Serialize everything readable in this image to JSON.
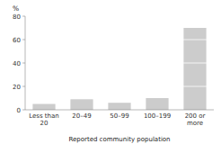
{
  "chart_data": {
    "type": "bar",
    "categories": [
      "Less than\n20",
      "20–49",
      "50–99",
      "100–199",
      "200 or\nmore"
    ],
    "values": [
      5,
      9,
      6,
      10,
      70
    ],
    "color": "#cccccc",
    "ylabel": "%",
    "xlabel": "Reported community population",
    "ylim": [
      0,
      80
    ],
    "yticks": [
      0,
      20,
      40,
      60,
      80
    ],
    "grid": true
  }
}
